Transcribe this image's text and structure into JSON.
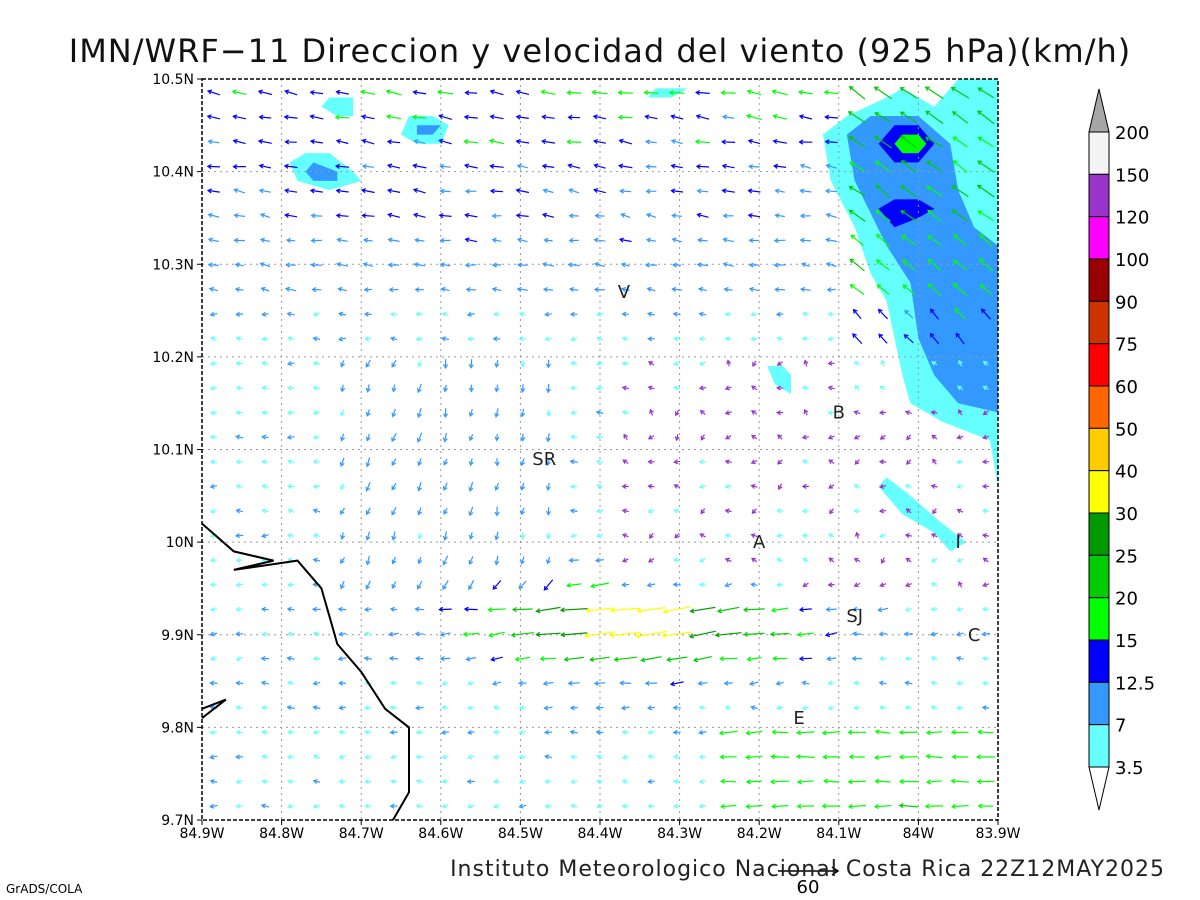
{
  "title": "IMN/WRF−11 Direccion y velocidad del viento (925 hPa)(km/h)",
  "footer": "Instituto Meteorologico Nacional Costa Rica 22Z12MAY2025",
  "credit": "GrADS/COLA",
  "reference_vector": {
    "label": "60",
    "speed": 60
  },
  "axes": {
    "lon_ticks": [
      "84.9W",
      "84.8W",
      "84.7W",
      "84.6W",
      "84.5W",
      "84.4W",
      "84.3W",
      "84.2W",
      "84.1W",
      "84W",
      "83.9W"
    ],
    "lat_ticks": [
      "10.5N",
      "10.4N",
      "10.3N",
      "10.2N",
      "10.1N",
      "10N",
      "9.9N",
      "9.8N",
      "9.7N"
    ],
    "lon_range": [
      -84.9,
      -83.9
    ],
    "lat_range": [
      9.7,
      10.5
    ],
    "grid": true
  },
  "colorbar": {
    "levels": [
      "200",
      "150",
      "120",
      "100",
      "90",
      "75",
      "60",
      "50",
      "40",
      "30",
      "25",
      "20",
      "15",
      "12.5",
      "7",
      "3.5"
    ],
    "colors": [
      "#f4f4f4",
      "#9a33cc",
      "#ff00ff",
      "#990000",
      "#cc3300",
      "#ff0000",
      "#ff6600",
      "#ffcc00",
      "#ffff00",
      "#009900",
      "#00cc00",
      "#00ff00",
      "#0000ff",
      "#3399ff",
      "#66ffff"
    ],
    "over_color": "#a6a6a6"
  },
  "places": [
    {
      "label": "V",
      "lon": -84.37,
      "lat": 10.27
    },
    {
      "label": "B",
      "lon": -84.1,
      "lat": 10.14
    },
    {
      "label": "SR",
      "lon": -84.47,
      "lat": 10.09
    },
    {
      "label": "A",
      "lon": -84.2,
      "lat": 10.0
    },
    {
      "label": "I",
      "lon": -83.95,
      "lat": 10.0
    },
    {
      "label": "SJ",
      "lon": -84.08,
      "lat": 9.92
    },
    {
      "label": "C",
      "lon": -83.93,
      "lat": 9.9
    },
    {
      "label": "E",
      "lon": -84.15,
      "lat": 9.81
    }
  ],
  "contours": [
    {
      "level": "3.5",
      "color": "#66ffff",
      "polygon": [
        [
          -84.04,
          10.48
        ],
        [
          -84.09,
          10.46
        ],
        [
          -84.12,
          10.44
        ],
        [
          -84.11,
          10.39
        ],
        [
          -84.08,
          10.34
        ],
        [
          -84.06,
          10.29
        ],
        [
          -84.04,
          10.26
        ],
        [
          -84.03,
          10.22
        ],
        [
          -84.02,
          10.18
        ],
        [
          -84.01,
          10.15
        ],
        [
          -83.97,
          10.13
        ],
        [
          -83.91,
          10.11
        ],
        [
          -83.9,
          10.06
        ],
        [
          -83.9,
          10.5
        ],
        [
          -83.95,
          10.5
        ],
        [
          -83.98,
          10.47
        ],
        [
          -84.02,
          10.49
        ]
      ]
    },
    {
      "level": "7",
      "color": "#3399ff",
      "polygon": [
        [
          -84.06,
          10.46
        ],
        [
          -84.09,
          10.44
        ],
        [
          -84.08,
          10.39
        ],
        [
          -84.04,
          10.32
        ],
        [
          -84.01,
          10.28
        ],
        [
          -84.0,
          10.22
        ],
        [
          -83.98,
          10.18
        ],
        [
          -83.95,
          10.15
        ],
        [
          -83.9,
          10.14
        ],
        [
          -83.9,
          10.32
        ],
        [
          -83.93,
          10.34
        ],
        [
          -83.95,
          10.38
        ],
        [
          -83.96,
          10.43
        ],
        [
          -84.0,
          10.46
        ]
      ]
    },
    {
      "level": "12.5",
      "color": "#0000ff",
      "polygon": [
        [
          -84.03,
          10.45
        ],
        [
          -84.05,
          10.43
        ],
        [
          -84.03,
          10.41
        ],
        [
          -84.0,
          10.41
        ],
        [
          -83.98,
          10.43
        ],
        [
          -84.0,
          10.45
        ]
      ]
    },
    {
      "level": "12.5",
      "color": "#0000ff",
      "polygon": [
        [
          -84.03,
          10.37
        ],
        [
          -84.05,
          10.36
        ],
        [
          -84.03,
          10.34
        ],
        [
          -84.0,
          10.35
        ],
        [
          -83.98,
          10.36
        ],
        [
          -84.0,
          10.37
        ]
      ]
    },
    {
      "level": "15",
      "color": "#00ff00",
      "polygon": [
        [
          -84.02,
          10.44
        ],
        [
          -84.03,
          10.43
        ],
        [
          -84.02,
          10.42
        ],
        [
          -84.0,
          10.42
        ],
        [
          -83.99,
          10.43
        ],
        [
          -84.0,
          10.44
        ]
      ]
    },
    {
      "level": "3.5",
      "color": "#66ffff",
      "polygon": [
        [
          -84.77,
          10.42
        ],
        [
          -84.79,
          10.41
        ],
        [
          -84.78,
          10.39
        ],
        [
          -84.74,
          10.38
        ],
        [
          -84.7,
          10.39
        ],
        [
          -84.71,
          10.4
        ],
        [
          -84.74,
          10.42
        ]
      ]
    },
    {
      "level": "7",
      "color": "#3399ff",
      "polygon": [
        [
          -84.76,
          10.41
        ],
        [
          -84.77,
          10.4
        ],
        [
          -84.76,
          10.39
        ],
        [
          -84.73,
          10.39
        ],
        [
          -84.73,
          10.4
        ]
      ]
    },
    {
      "level": "3.5",
      "color": "#66ffff",
      "polygon": [
        [
          -84.64,
          10.46
        ],
        [
          -84.65,
          10.44
        ],
        [
          -84.63,
          10.43
        ],
        [
          -84.6,
          10.43
        ],
        [
          -84.59,
          10.45
        ],
        [
          -84.61,
          10.46
        ]
      ]
    },
    {
      "level": "7",
      "color": "#3399ff",
      "polygon": [
        [
          -84.63,
          10.45
        ],
        [
          -84.63,
          10.44
        ],
        [
          -84.61,
          10.44
        ],
        [
          -84.6,
          10.45
        ]
      ]
    },
    {
      "level": "3.5",
      "color": "#66ffff",
      "polygon": [
        [
          -84.74,
          10.48
        ],
        [
          -84.75,
          10.47
        ],
        [
          -84.73,
          10.46
        ],
        [
          -84.71,
          10.46
        ],
        [
          -84.71,
          10.48
        ]
      ]
    },
    {
      "level": "3.5",
      "color": "#66ffff",
      "polygon": [
        [
          -84.33,
          10.49
        ],
        [
          -84.34,
          10.48
        ],
        [
          -84.31,
          10.48
        ],
        [
          -84.29,
          10.49
        ]
      ]
    },
    {
      "level": "3.5",
      "color": "#66ffff",
      "polygon": [
        [
          -84.19,
          10.19
        ],
        [
          -84.18,
          10.17
        ],
        [
          -84.16,
          10.16
        ],
        [
          -84.16,
          10.18
        ],
        [
          -84.17,
          10.19
        ]
      ]
    },
    {
      "level": "3.5",
      "color": "#66ffff",
      "polygon": [
        [
          -84.05,
          10.06
        ],
        [
          -84.02,
          10.03
        ],
        [
          -83.98,
          10.01
        ],
        [
          -83.96,
          9.99
        ],
        [
          -83.94,
          10.0
        ],
        [
          -83.97,
          10.02
        ],
        [
          -84.01,
          10.05
        ],
        [
          -84.04,
          10.07
        ]
      ]
    }
  ],
  "coastline": [
    [
      [
        -84.9,
        10.02
      ],
      [
        -84.86,
        9.99
      ],
      [
        -84.81,
        9.98
      ],
      [
        -84.86,
        9.97
      ],
      [
        -84.78,
        9.98
      ],
      [
        -84.75,
        9.95
      ],
      [
        -84.74,
        9.92
      ],
      [
        -84.73,
        9.89
      ],
      [
        -84.7,
        9.86
      ],
      [
        -84.67,
        9.82
      ],
      [
        -84.64,
        9.8
      ],
      [
        -84.64,
        9.73
      ],
      [
        -84.66,
        9.7
      ]
    ],
    [
      [
        -84.9,
        9.82
      ],
      [
        -84.87,
        9.83
      ],
      [
        -84.9,
        9.81
      ]
    ]
  ]
}
